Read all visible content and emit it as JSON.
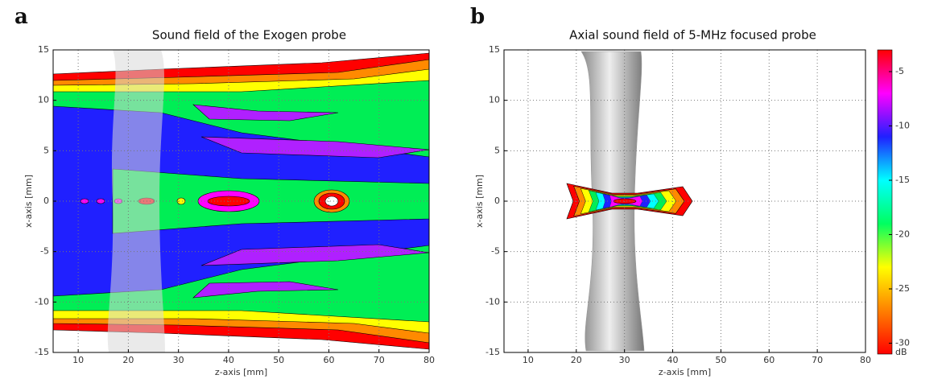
{
  "chart_data": [
    {
      "type": "contour",
      "panel_label": "a",
      "title": "Sound field of the Exogen probe",
      "xlabel": "z-axis [mm]",
      "ylabel": "x-axis [mm]",
      "xlim": [
        5,
        80
      ],
      "xticks": [
        10,
        20,
        30,
        40,
        50,
        60,
        70,
        80
      ],
      "ylim": [
        -15,
        15
      ],
      "yticks": [
        -15,
        -10,
        -5,
        0,
        5,
        10,
        15
      ],
      "grid": true
    },
    {
      "type": "contour",
      "panel_label": "b",
      "title": "Axial sound field of 5-MHz focused probe",
      "xlabel": "z-axis [mm]",
      "ylabel": "x-axis [mm]",
      "xlim": [
        5,
        80
      ],
      "xticks": [
        10,
        20,
        30,
        40,
        50,
        60,
        70,
        80
      ],
      "ylim": [
        -15,
        15
      ],
      "yticks": [
        -15,
        -10,
        -5,
        0,
        5,
        10,
        15
      ],
      "grid": true,
      "colorbar": {
        "label": "dB",
        "lim": [
          -31,
          -3
        ],
        "ticks": [
          -5,
          -10,
          -15,
          -20,
          -25,
          -30
        ],
        "colors": [
          "#ff0000",
          "#ff00ff",
          "#2020ff",
          "#00ffff",
          "#00ff60",
          "#ffff00",
          "#ff8000",
          "#ff0000"
        ]
      }
    }
  ]
}
